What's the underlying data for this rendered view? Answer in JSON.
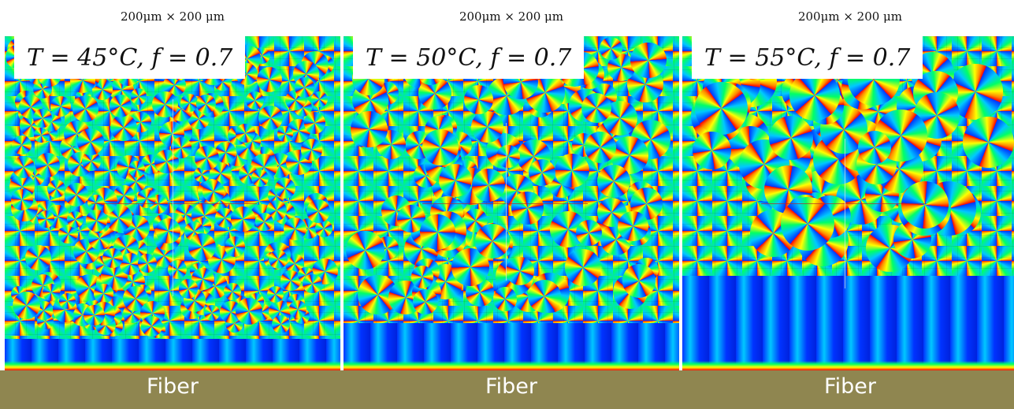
{
  "panels": [
    {
      "scale": "200μm × 200 μm",
      "label": "T = 45°C, f = 0.7",
      "fiber": "Fiber"
    },
    {
      "scale": "200μm × 200 μm",
      "label": "T = 50°C, f = 0.7",
      "fiber": "Fiber"
    },
    {
      "scale": "200μm × 200 μm",
      "label": "T = 55°C, f = 0.7",
      "fiber": "Fiber"
    }
  ],
  "colors": {
    "bottom_strip": "#8f8650",
    "phase_field_palette": [
      "#0033ff",
      "#00c8ff",
      "#00ff66",
      "#ffff00",
      "#ff8800",
      "#ff0000"
    ],
    "label_background": "#ffffff"
  }
}
